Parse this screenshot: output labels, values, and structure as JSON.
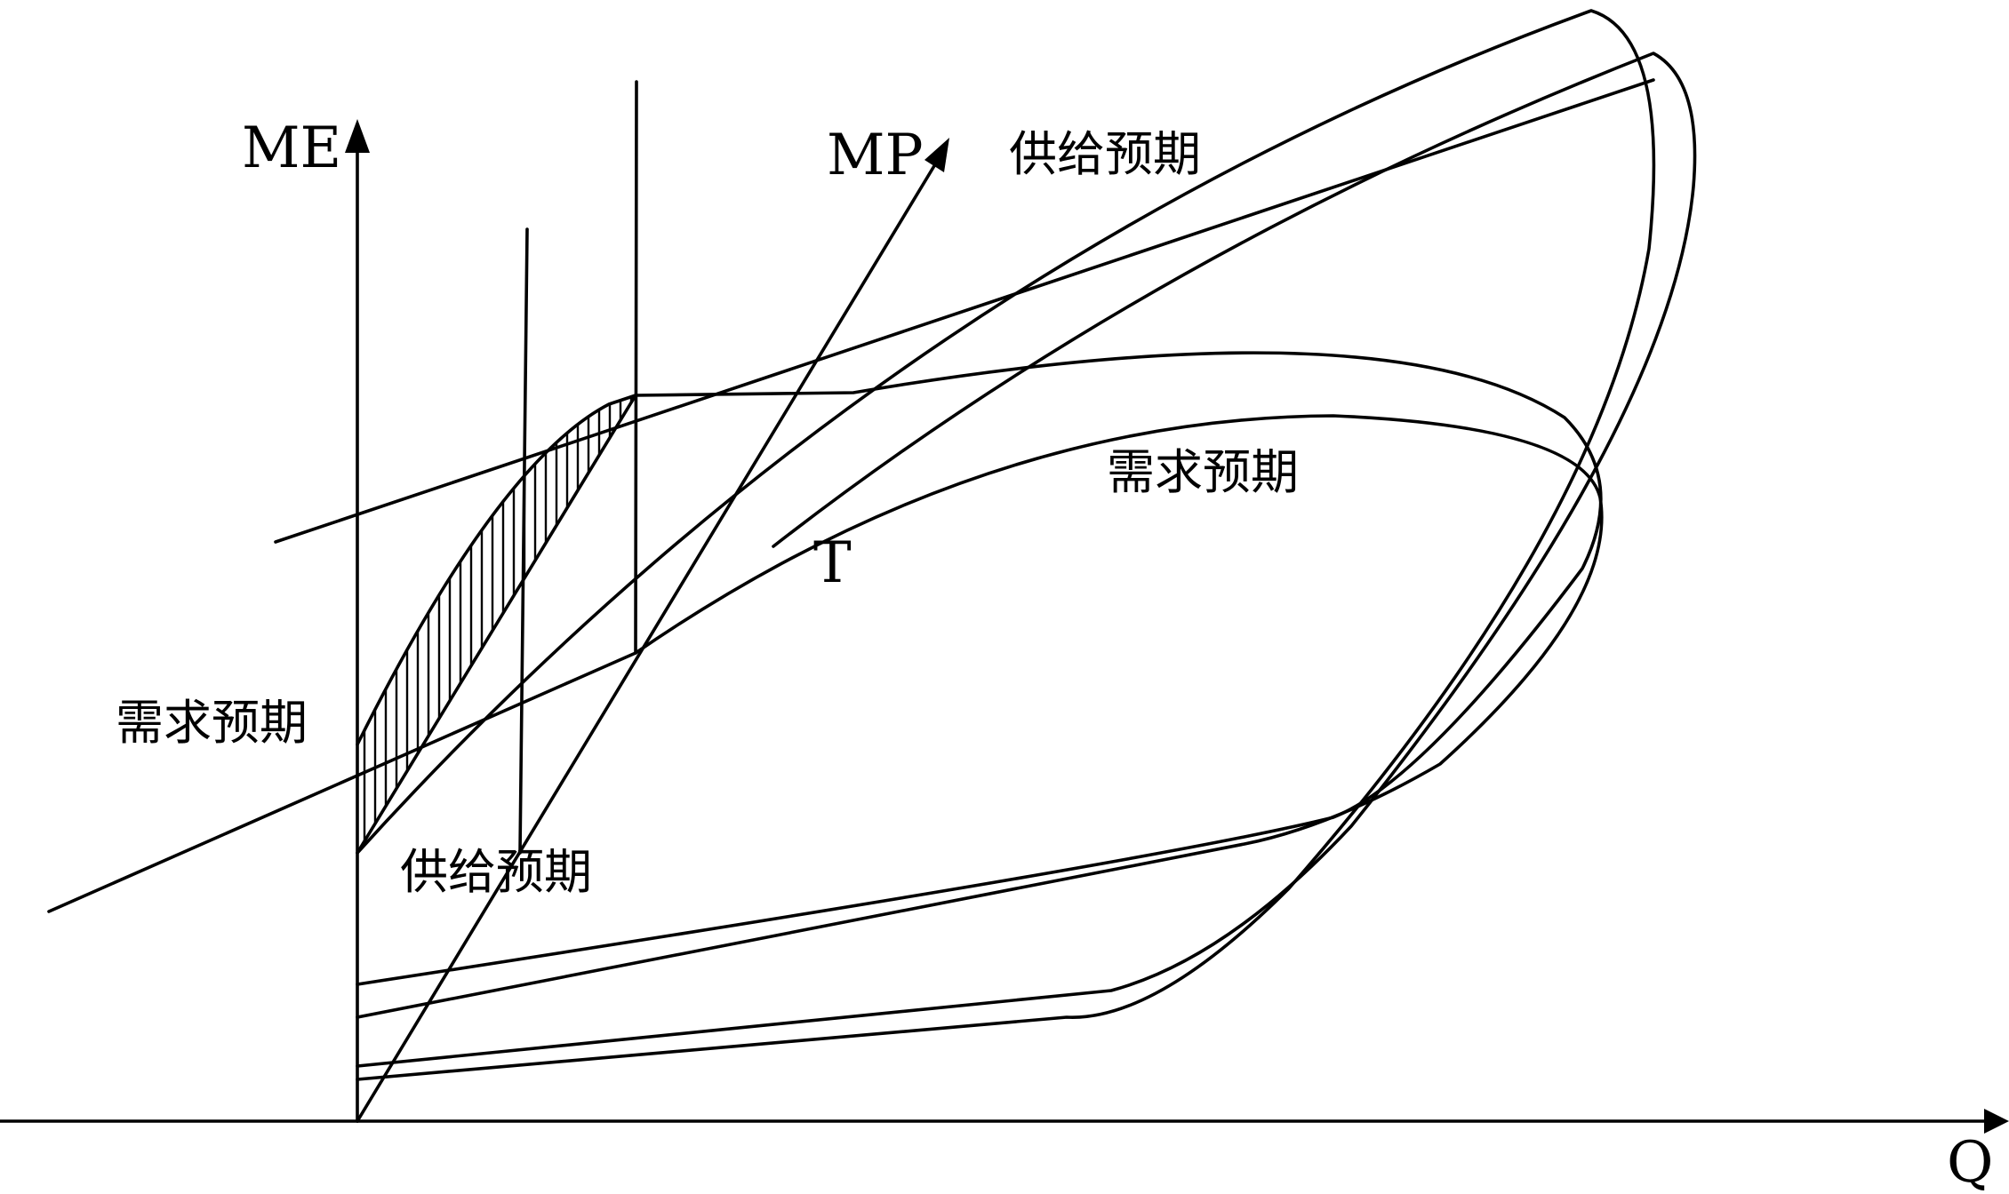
{
  "axes": {
    "y_label": "ME",
    "x_label": "Q"
  },
  "labels": {
    "mp": "MP",
    "supply_top": "供给预期",
    "demand_right": "需求预期",
    "t_point": "T",
    "demand_left": "需求预期",
    "supply_bottom": "供给预期"
  },
  "colors": {
    "ink": "#000000",
    "background": "#ffffff"
  }
}
